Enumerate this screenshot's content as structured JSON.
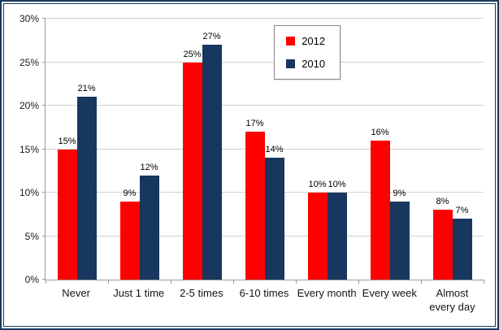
{
  "colors": {
    "frame": "#17375E",
    "grid": "#D0D0D0",
    "axis": "#9A9A9A",
    "background": "#FFFFFF"
  },
  "chart_data": {
    "type": "bar",
    "title": "",
    "xlabel": "",
    "ylabel": "",
    "categories": [
      "Never",
      "Just 1 time",
      "2-5 times",
      "6-10 times",
      "Every month",
      "Every week",
      "Almost every day"
    ],
    "series": [
      {
        "name": "2012",
        "color": "#FF0000",
        "values": [
          15,
          9,
          25,
          17,
          10,
          16,
          8
        ]
      },
      {
        "name": "2010",
        "color": "#17375E",
        "values": [
          21,
          12,
          27,
          14,
          10,
          9,
          7
        ]
      }
    ],
    "data_label_suffix": "%",
    "ylim": [
      0,
      30
    ],
    "ytick_step": 5,
    "ytick_labels": [
      "0%",
      "5%",
      "10%",
      "15%",
      "20%",
      "25%",
      "30%"
    ],
    "grid": true,
    "legend_position": "top-center-right"
  }
}
